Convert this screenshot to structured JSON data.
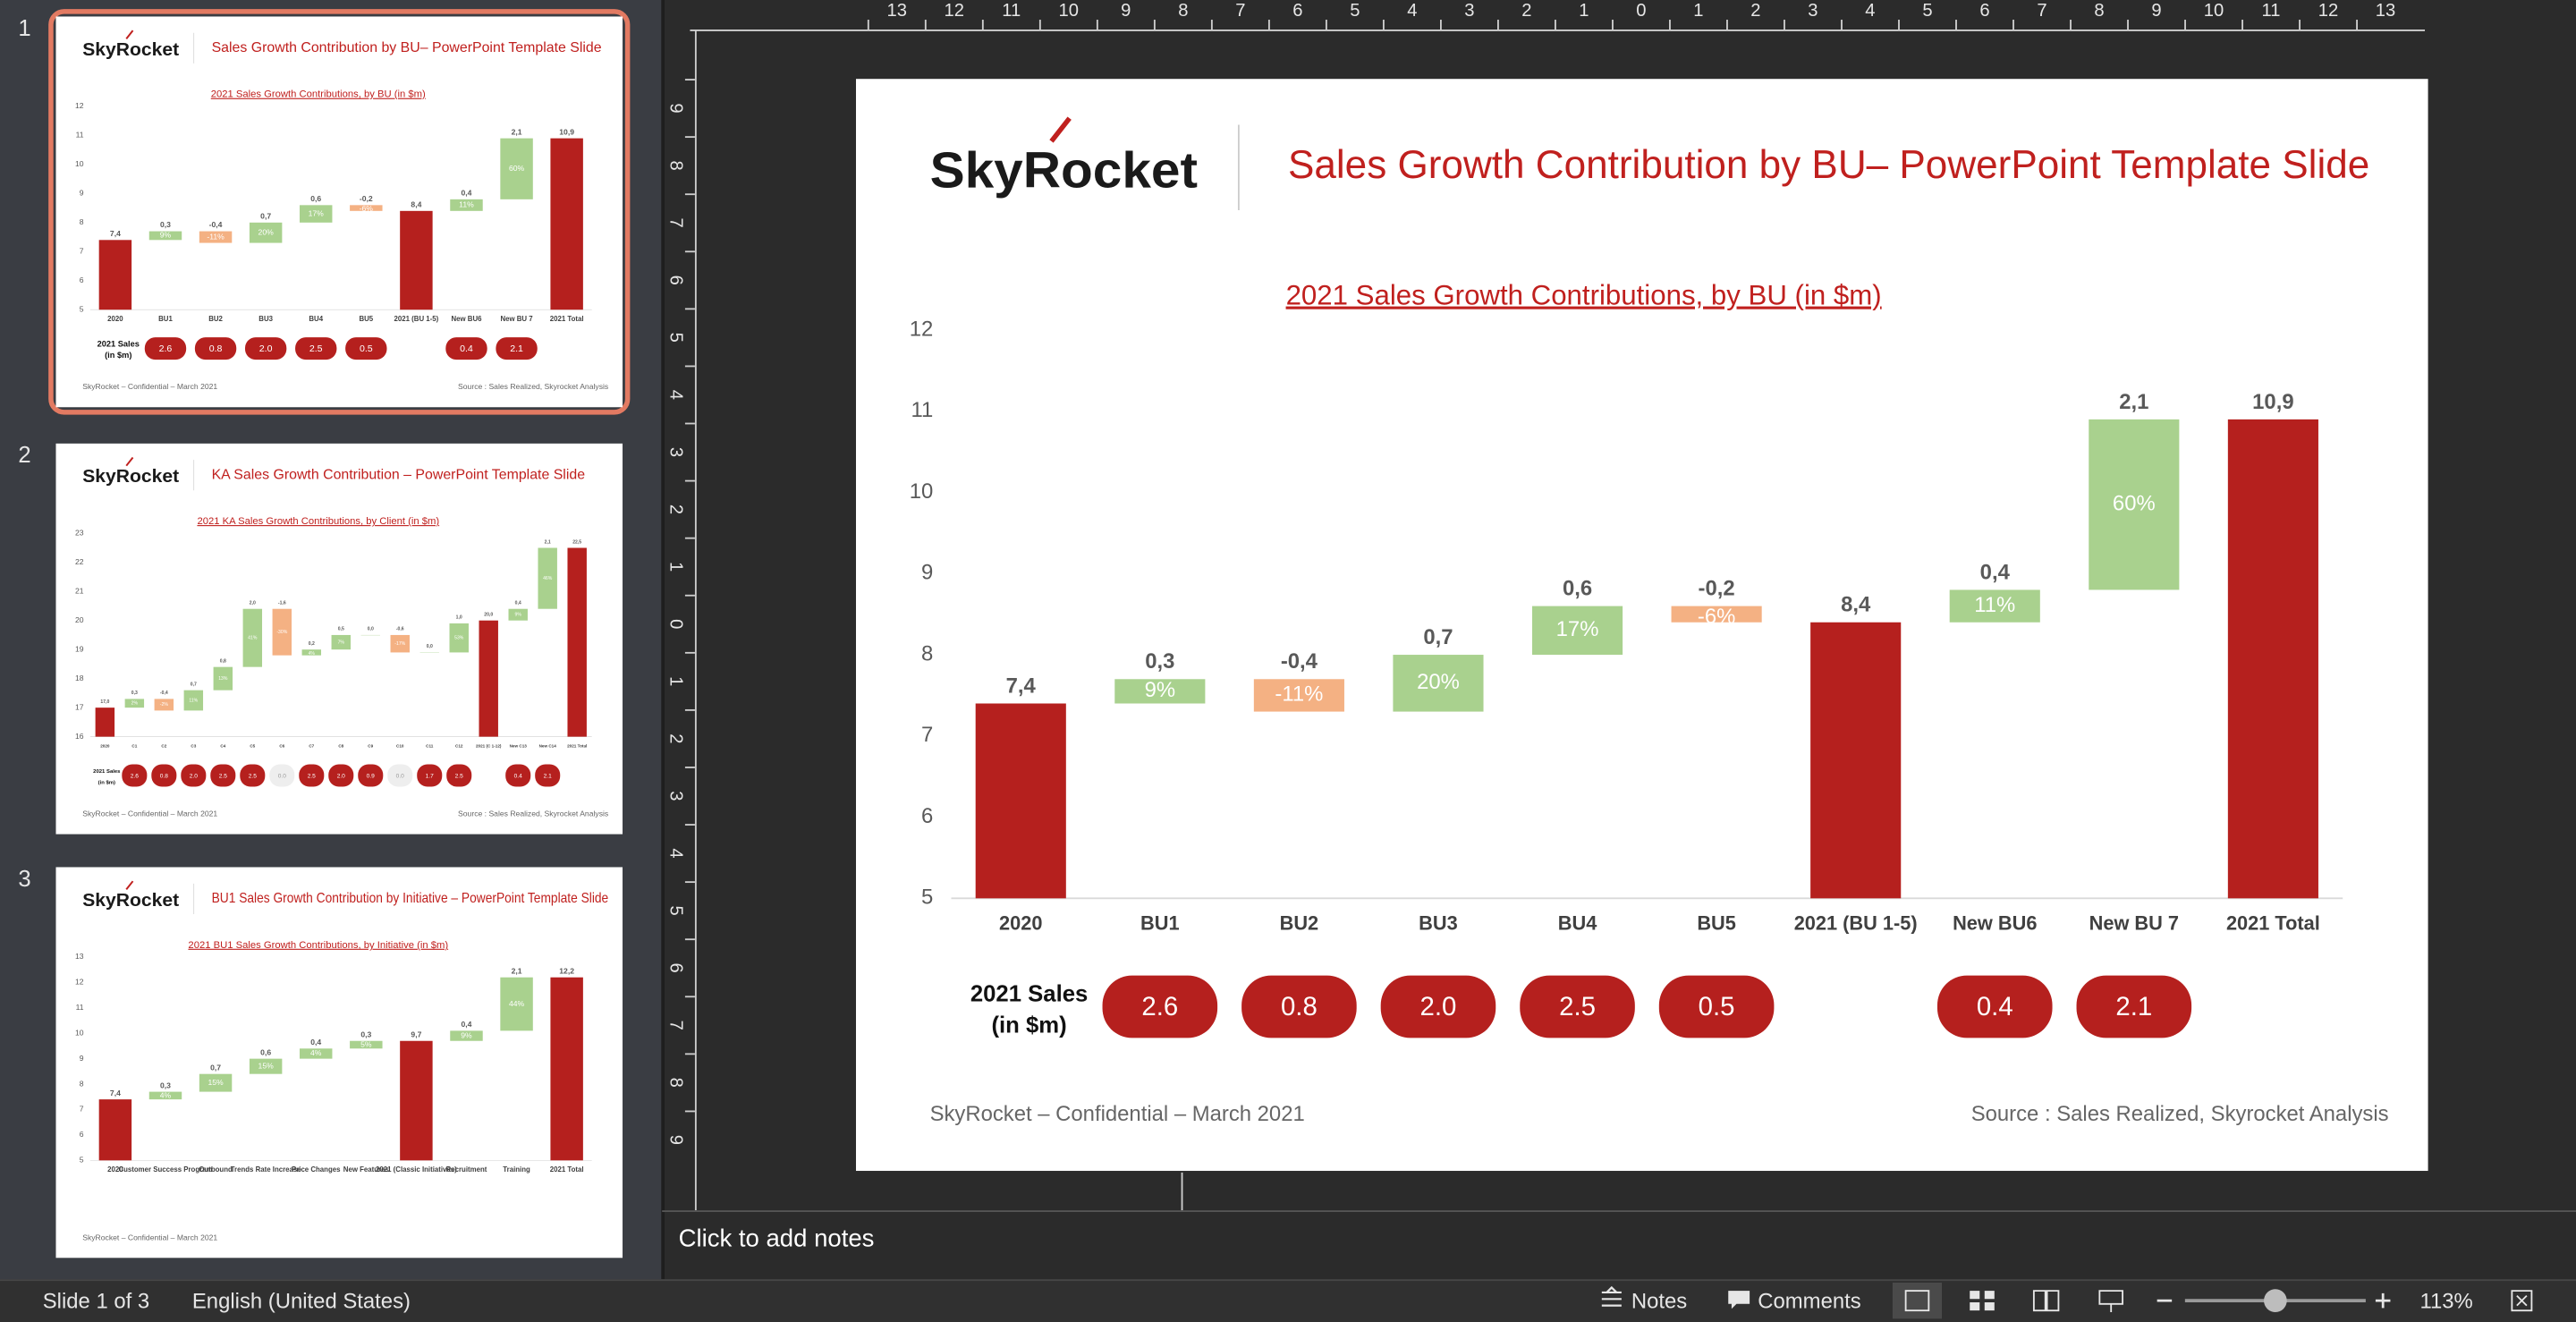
{
  "slides": [
    {
      "logo": "SkyRocket",
      "title": "Sales Growth Contribution by BU– PowerPoint Template Slide",
      "chart_data": {
        "type": "waterfall",
        "title": "2021 Sales Growth Contributions, by BU (in $m)",
        "categories": [
          "2020",
          "BU1",
          "BU2",
          "BU3",
          "BU4",
          "BU5",
          "2021 (BU 1-5)",
          "New BU6",
          "New BU 7",
          "2021 Total"
        ],
        "kinds": [
          "total",
          "delta",
          "delta",
          "delta",
          "delta",
          "delta",
          "total",
          "delta",
          "delta",
          "total"
        ],
        "values": [
          7.4,
          0.3,
          -0.4,
          0.7,
          0.6,
          -0.2,
          8.4,
          0.4,
          2.1,
          10.9
        ],
        "value_labels": [
          "7,4",
          "0,3",
          "-0,4",
          "0,7",
          "0,6",
          "-0,2",
          "8,4",
          "0,4",
          "2,1",
          "10,9"
        ],
        "pct_labels": [
          null,
          "9%",
          "-11%",
          "20%",
          "17%",
          "-6%",
          null,
          "11%",
          "60%",
          null
        ],
        "colors": {
          "total": "#b5201e",
          "up": "#a9d18e",
          "down": "#f4b183"
        },
        "ylim": [
          5,
          12
        ],
        "yticks": [
          5,
          6,
          7,
          8,
          9,
          10,
          11,
          12
        ],
        "sales": [
          null,
          2.6,
          0.8,
          {
            "value": 2,
            "label": "2.0"
          },
          2.5,
          0.5,
          null,
          0.4,
          2.1,
          null
        ]
      },
      "sales_label": [
        "2021 Sales",
        "(in $m)"
      ],
      "footer_left": "SkyRocket – Confidential – March 2021",
      "footer_right": "Source : Sales Realized, Skyrocket Analysis"
    },
    {
      "logo": "SkyRocket",
      "title": "KA Sales Growth Contribution – PowerPoint Template Slide",
      "chart_data": {
        "type": "waterfall",
        "title": "2021 KA Sales Growth Contributions, by Client (in $m)",
        "categories": [
          "2020",
          "C1",
          "C2",
          "C3",
          "C4",
          "C5",
          "C6",
          "C7",
          "C8",
          "C9",
          "C10",
          "C11",
          "C12",
          "2021 (C 1-12)",
          "New C13",
          "New C14",
          "2021 Total"
        ],
        "kinds": [
          "total",
          "delta",
          "delta",
          "delta",
          "delta",
          "delta",
          "delta",
          "delta",
          "delta",
          "delta",
          "delta",
          "delta",
          "delta",
          "total",
          "delta",
          "delta",
          "total"
        ],
        "values": [
          17,
          0.3,
          -0.4,
          0.7,
          0.8,
          2,
          -1.6,
          0.2,
          0.5,
          0,
          -0.6,
          0,
          1,
          20,
          0.4,
          2.1,
          22.5
        ],
        "value_labels": [
          "17,0",
          "0,3",
          "-0,4",
          "0,7",
          "0,8",
          "2,0",
          "-1,6",
          "0,2",
          "0,5",
          "0,0",
          "-0,6",
          "0,0",
          "1,0",
          "20,0",
          "0,4",
          "2,1",
          "22,5"
        ],
        "pct_labels": [
          null,
          "2%",
          "-2%",
          "11%",
          "13%",
          "41%",
          "-30%",
          "4%",
          "7%",
          null,
          "-17%",
          null,
          "53%",
          null,
          "9%",
          "46%",
          null
        ],
        "colors": {
          "total": "#b5201e",
          "up": "#a9d18e",
          "down": "#f4b183"
        },
        "ylim": [
          16,
          23
        ],
        "yticks": [
          16,
          17,
          18,
          19,
          20,
          21,
          22,
          23
        ],
        "sales": [
          null,
          2.6,
          0.8,
          {
            "value": 2,
            "label": "2.0"
          },
          2.5,
          2.5,
          {
            "value": 0,
            "label": "0.0"
          },
          2.5,
          {
            "value": 2,
            "label": "2.0"
          },
          0.9,
          {
            "value": 0,
            "label": "0.0"
          },
          1.7,
          2.5,
          null,
          0.4,
          2.1,
          null
        ]
      },
      "sales_label": [
        "2021 Sales",
        "(in $m)"
      ],
      "footer_left": "SkyRocket – Confidential – March 2021",
      "footer_right": "Source : Sales Realized, Skyrocket Analysis"
    },
    {
      "logo": "SkyRocket",
      "title": "BU1 Sales Growth Contribution by Initiative – PowerPoint Template Slide",
      "chart_data": {
        "type": "waterfall",
        "title": "2021 BU1 Sales Growth Contributions, by Initiative (in $m)",
        "categories": [
          "2020",
          "Customer Success Program",
          "Outbound",
          "Trends Rate Increase",
          "Price Changes",
          "New Features",
          "2021 (Classic Initiatives)",
          "Recruitment",
          "Training",
          "2021 Total"
        ],
        "kinds": [
          "total",
          "delta",
          "delta",
          "delta",
          "delta",
          "delta",
          "total",
          "delta",
          "delta",
          "total"
        ],
        "values": [
          7.4,
          0.3,
          0.7,
          0.6,
          0.4,
          0.3,
          9.7,
          0.4,
          2.1,
          12.2
        ],
        "value_labels": [
          "7,4",
          "0,3",
          "0,7",
          "0,6",
          "0,4",
          "0,3",
          "9,7",
          "0,4",
          "2,1",
          "12,2"
        ],
        "pct_labels": [
          null,
          "4%",
          "15%",
          "15%",
          "4%",
          "5%",
          null,
          "9%",
          "44%",
          null
        ],
        "colors": {
          "total": "#b5201e",
          "up": "#a9d18e",
          "down": "#f4b183"
        },
        "ylim": [
          5,
          13
        ],
        "yticks": [
          5,
          6,
          7,
          8,
          9,
          10,
          11,
          12,
          13
        ]
      },
      "footer_left": "SkyRocket – Confidential – March 2021"
    }
  ],
  "ui": {
    "slide_numbers": [
      1,
      2,
      3
    ],
    "ruler_h": [
      13,
      12,
      11,
      10,
      9,
      8,
      7,
      6,
      5,
      4,
      3,
      2,
      1,
      0,
      1,
      2,
      3,
      4,
      5,
      6,
      7,
      8,
      9,
      10,
      11,
      12,
      13
    ],
    "ruler_v": [
      9,
      8,
      7,
      6,
      5,
      4,
      3,
      2,
      1,
      0,
      1,
      2,
      3,
      4,
      5,
      6,
      7,
      8,
      9
    ],
    "notes_placeholder": "Click to add notes",
    "status": {
      "slide": "Slide 1 of 3",
      "language": "English (United States)",
      "notes": "Notes",
      "comments": "Comments",
      "zoom": "113%"
    }
  }
}
